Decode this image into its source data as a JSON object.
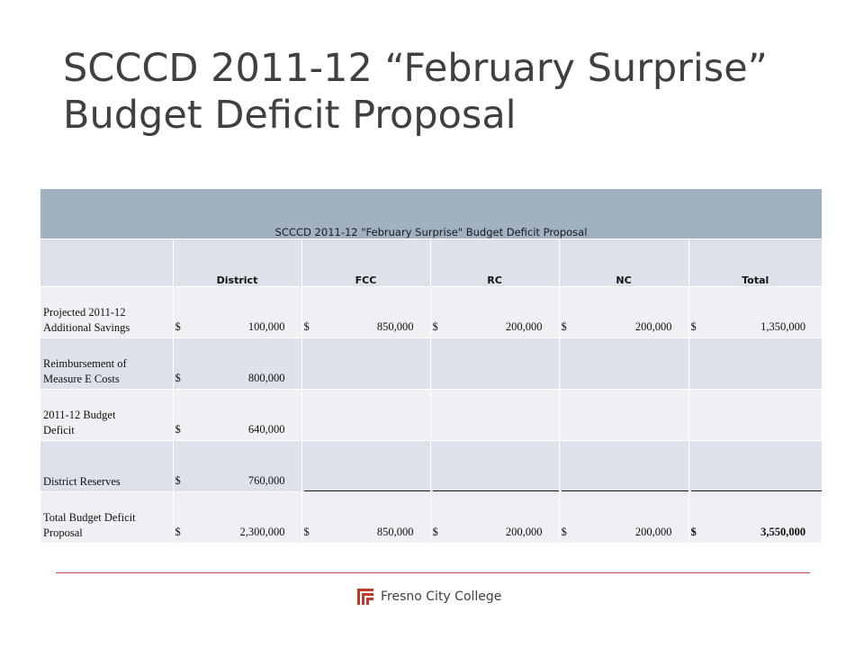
{
  "slide": {
    "title_line1": "SCCCD 2011-12 “February Surprise”",
    "title_line2": "Budget Deficit Proposal"
  },
  "table": {
    "title": "SCCCD 2011-12 \"February Surprise\" Budget Deficit Proposal",
    "columns": [
      "District",
      "FCC",
      "RC",
      "NC",
      "Total"
    ],
    "rows": [
      {
        "label_line1": "Projected 2011-12",
        "label_line2": "Additional Savings",
        "cells": [
          {
            "cur": "$",
            "amt": "100,000"
          },
          {
            "cur": "$",
            "amt": "850,000"
          },
          {
            "cur": "$",
            "amt": "200,000"
          },
          {
            "cur": "$",
            "amt": "200,000"
          },
          {
            "cur": "$",
            "amt": "1,350,000"
          }
        ]
      },
      {
        "label_line1": "Reimbursement of",
        "label_line2": "Measure E Costs",
        "cells": [
          {
            "cur": "$",
            "amt": "800,000"
          }
        ]
      },
      {
        "label_line1": "2011-12 Budget",
        "label_line2": "Deficit",
        "cells": [
          {
            "cur": "$",
            "amt": "640,000"
          }
        ]
      },
      {
        "label_line1": "District Reserves",
        "cells": [
          {
            "cur": "$",
            "amt": "760,000"
          }
        ]
      },
      {
        "label_line1": "Total Budget Deficit",
        "label_line2": "Proposal",
        "cells": [
          {
            "cur": "$",
            "amt": "2,300,000"
          },
          {
            "cur": "$",
            "amt": "850,000"
          },
          {
            "cur": "$",
            "amt": "200,000"
          },
          {
            "cur": "$",
            "amt": "200,000"
          },
          {
            "cur": "$",
            "amt": "3,550,000"
          }
        ]
      }
    ]
  },
  "footer": {
    "text": "Fresno City College",
    "logo_icon": "fcc-logo-icon",
    "accent_color": "#c0504d"
  }
}
